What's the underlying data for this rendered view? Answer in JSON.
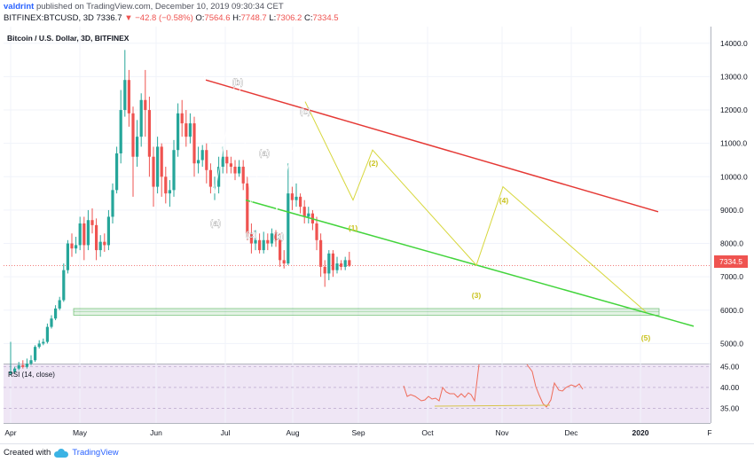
{
  "header": {
    "user": "valdrint",
    "published_text": "published on TradingView.com, December 10, 2019 09:30:34 CET",
    "symbol": "BITFINEX:BTCUSD, 3D",
    "last": "7336.7",
    "change": "▼ −42.8 (−0.58%)",
    "open_label": "O:",
    "open": "7564.6",
    "high_label": "H:",
    "high": "7748.7",
    "low_label": "L:",
    "low": "7306.2",
    "close_label": "C:",
    "close": "7334.5"
  },
  "chart_title": "Bitcoin / U.S. Dollar, 3D, BITFINEX",
  "rsi_label": "RSI (14, close)",
  "footer": {
    "created_with": "Created with",
    "brand": "TradingView"
  },
  "colors": {
    "up": "#26a69a",
    "down": "#ef5350",
    "red_trendline": "#e53935",
    "green_trendline": "#43d43c",
    "wave": "#d7d73c",
    "rsi_line": "#ef6c5a",
    "rsi_bg": "#efe6f5",
    "zone": "#4caf50"
  },
  "chart_data": {
    "type": "candlestick",
    "price_axis": {
      "ticks": [
        "14000.0",
        "13000.0",
        "12000.0",
        "11000.0",
        "10000.0",
        "9000.0",
        "8000.0",
        "7000.0",
        "6000.0",
        "5000.0"
      ],
      "ylim": [
        4400,
        14500
      ],
      "current_price": "7334.5",
      "current_value": 7334.5
    },
    "rsi_axis": {
      "ticks": [
        "45.00",
        "40.00",
        "35.00"
      ],
      "ylim": [
        31.5,
        45.5
      ]
    },
    "time_axis": {
      "labels": [
        "Apr",
        "May",
        "Jun",
        "Jul",
        "Aug",
        "Sep",
        "Oct",
        "Nov",
        "Dec",
        "2020",
        "F"
      ]
    },
    "candles": [
      [
        4100,
        4150,
        4050,
        5050
      ],
      [
        4150,
        4250,
        4100,
        4300
      ],
      [
        4250,
        4350,
        4200,
        4450
      ],
      [
        4350,
        4300,
        4250,
        4500
      ],
      [
        4300,
        4400,
        4250,
        4550
      ],
      [
        4400,
        4500,
        4350,
        4650
      ],
      [
        4500,
        4900,
        4450,
        4950
      ],
      [
        4900,
        5000,
        4850,
        5100
      ],
      [
        5000,
        5050,
        4950,
        5150
      ],
      [
        5050,
        5500,
        5000,
        5600
      ],
      [
        5500,
        5750,
        5450,
        5850
      ],
      [
        5750,
        6050,
        5700,
        6150
      ],
      [
        6050,
        6300,
        6000,
        6400
      ],
      [
        6300,
        7200,
        6250,
        7400
      ],
      [
        7200,
        8000,
        7100,
        8100
      ],
      [
        8000,
        7850,
        7600,
        8300
      ],
      [
        7850,
        7950,
        7700,
        8200
      ],
      [
        7950,
        8600,
        7800,
        8800
      ],
      [
        8600,
        7950,
        7500,
        8800
      ],
      [
        7950,
        8700,
        7800,
        9000
      ],
      [
        8700,
        8550,
        8300,
        9050
      ],
      [
        8550,
        7800,
        7500,
        8750
      ],
      [
        7800,
        8050,
        7600,
        8250
      ],
      [
        8050,
        7950,
        7750,
        8300
      ],
      [
        7950,
        8800,
        7800,
        9000
      ],
      [
        8800,
        9600,
        8600,
        9800
      ],
      [
        9600,
        10700,
        9500,
        10900
      ],
      [
        10700,
        12000,
        10400,
        12600
      ],
      [
        12000,
        12900,
        11800,
        13800
      ],
      [
        12900,
        11900,
        11500,
        13200
      ],
      [
        11900,
        10600,
        9400,
        12100
      ],
      [
        10600,
        11200,
        10300,
        11700
      ],
      [
        11200,
        12300,
        10900,
        12500
      ],
      [
        12300,
        12000,
        11200,
        13200
      ],
      [
        12000,
        10600,
        10000,
        12400
      ],
      [
        10600,
        9700,
        9100,
        10900
      ],
      [
        9700,
        10900,
        9500,
        11200
      ],
      [
        10900,
        10000,
        9400,
        11000
      ],
      [
        10000,
        9500,
        9200,
        10300
      ],
      [
        9500,
        9600,
        9100,
        9900
      ],
      [
        9600,
        10800,
        9400,
        11100
      ],
      [
        10800,
        11900,
        10600,
        12200
      ],
      [
        11900,
        11600,
        11200,
        12300
      ],
      [
        11600,
        11200,
        10900,
        12000
      ],
      [
        11200,
        11600,
        11000,
        11900
      ],
      [
        11600,
        10400,
        10000,
        11800
      ],
      [
        10400,
        10500,
        10100,
        10900
      ],
      [
        10500,
        10800,
        10300,
        10950
      ],
      [
        10800,
        10200,
        9800,
        11000
      ],
      [
        10200,
        9700,
        9500,
        10400
      ],
      [
        9700,
        9700,
        9300,
        10000
      ],
      [
        9700,
        10300,
        9500,
        10600
      ],
      [
        10300,
        10600,
        10100,
        10900
      ],
      [
        10600,
        10400,
        10100,
        10800
      ],
      [
        10400,
        10300,
        10100,
        10600
      ],
      [
        10300,
        10100,
        9900,
        10500
      ],
      [
        10100,
        10300,
        10000,
        10500
      ],
      [
        10300,
        9800,
        9600,
        10500
      ],
      [
        9800,
        8300,
        8100,
        10000
      ],
      [
        8300,
        8000,
        7700,
        8600
      ],
      [
        8000,
        8100,
        7800,
        8400
      ],
      [
        8100,
        7800,
        7700,
        8300
      ],
      [
        7800,
        8100,
        7700,
        8350
      ],
      [
        8100,
        8000,
        7800,
        8300
      ],
      [
        8000,
        8300,
        7900,
        8450
      ],
      [
        8300,
        8100,
        7900,
        8400
      ],
      [
        8100,
        7500,
        7300,
        8300
      ],
      [
        7500,
        7400,
        7250,
        7800
      ],
      [
        7400,
        9500,
        7350,
        10400
      ],
      [
        9500,
        9300,
        9000,
        9700
      ],
      [
        9300,
        9400,
        9100,
        9800
      ],
      [
        9400,
        9100,
        8900,
        9500
      ],
      [
        9100,
        8800,
        8600,
        9300
      ],
      [
        8800,
        8900,
        8600,
        9100
      ],
      [
        8900,
        8600,
        8400,
        9000
      ],
      [
        8600,
        8100,
        7800,
        8800
      ],
      [
        8100,
        7300,
        7000,
        8300
      ],
      [
        7300,
        7100,
        6700,
        7500
      ],
      [
        7100,
        7700,
        6900,
        7800
      ],
      [
        7700,
        7200,
        7000,
        7800
      ],
      [
        7200,
        7400,
        7100,
        7600
      ],
      [
        7400,
        7300,
        7200,
        7500
      ],
      [
        7300,
        7500,
        7200,
        7600
      ],
      [
        7500,
        7335,
        7300,
        7750
      ]
    ],
    "rsi_path": [
      [
        143,
        44.2
      ],
      [
        143,
        38.8
      ],
      [
        146,
        37.2
      ],
      [
        149,
        37.8
      ],
      [
        151,
        36.9
      ],
      [
        152,
        39.5
      ],
      [
        154,
        42.4
      ],
      [
        156,
        40.9
      ],
      [
        158,
        40.2
      ],
      [
        160,
        39.6
      ],
      [
        162,
        41.3
      ],
      [
        164,
        40.8
      ],
      [
        166,
        35.9
      ],
      [
        167,
        47.5
      ],
      [
        169,
        48.5
      ]
    ],
    "rsi_path2": [
      [
        184,
        46.2
      ],
      [
        187,
        44.5
      ],
      [
        189,
        39.8
      ],
      [
        191,
        36.5
      ],
      [
        192,
        35.8
      ],
      [
        194,
        37.0
      ],
      [
        196,
        41.0
      ],
      [
        198,
        39.2
      ],
      [
        200,
        39.5
      ],
      [
        202,
        40.7
      ],
      [
        204,
        39.8
      ]
    ],
    "annotations": {
      "white": [
        {
          "text": "(b)",
          "idx": 56.5,
          "price": 13350
        },
        {
          "text": "(a)",
          "idx": 51.5,
          "price": 8650
        },
        {
          "text": "(a)",
          "idx": 63.0,
          "price": 11150
        },
        {
          "text": "(c)",
          "idx": 59.5,
          "price": 8350
        },
        {
          "text": "(b)",
          "idx": 66.5,
          "price": 8220
        },
        {
          "text": "(c)",
          "idx": 71.5,
          "price": 12500
        }
      ],
      "yellow": [
        {
          "text": "(1)",
          "idx": 83.5,
          "price": 8450
        },
        {
          "text": "(2)",
          "idx": 88.5,
          "price": 10850
        },
        {
          "text": "(3)",
          "idx": 112.5,
          "price": 6650
        },
        {
          "text": "(4)",
          "idx": 118.5,
          "price": 9800
        },
        {
          "text": "(5)",
          "idx": 152.5,
          "price": 5550
        }
      ]
    }
  }
}
